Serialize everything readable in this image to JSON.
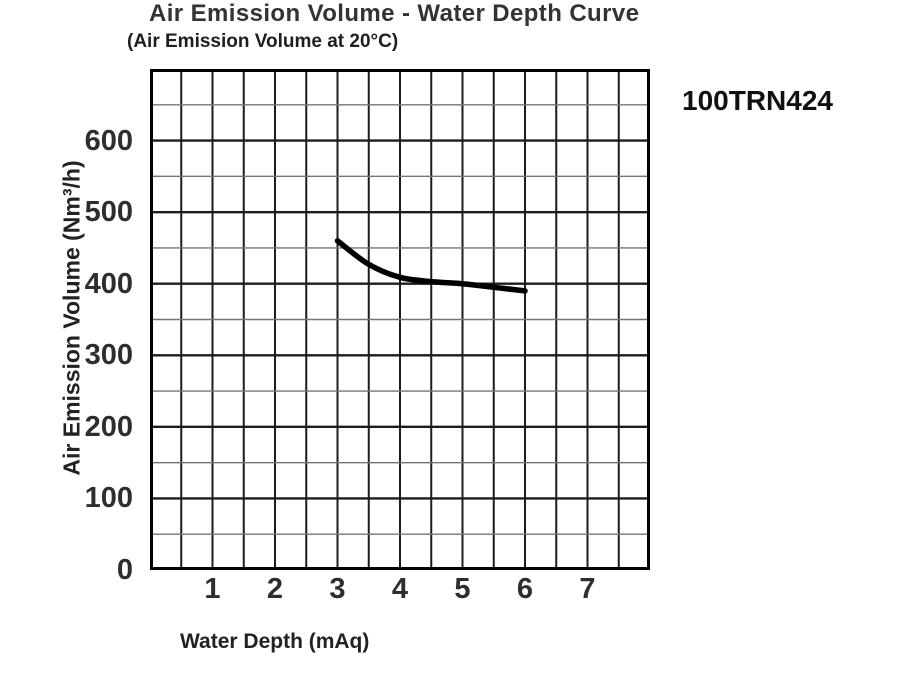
{
  "header": {
    "title": "Air Emission Volume - Water Depth Curve",
    "subtitle": "(Air Emission Volume at 20°C)",
    "model_label": "100TRN424"
  },
  "chart_data": {
    "type": "line",
    "title": "Air Emission Volume - Water Depth Curve",
    "subtitle": "Air Emission Volume at 20°C",
    "xlabel": "Water Depth (mAq)",
    "ylabel": "Air Emission Volume (Nm³/h)",
    "xlim": [
      0,
      8
    ],
    "ylim": [
      0,
      700
    ],
    "x_tick_labels": [
      1,
      2,
      3,
      4,
      5,
      6,
      7
    ],
    "y_tick_labels": [
      0,
      100,
      200,
      300,
      400,
      500,
      600
    ],
    "x_grid_step": 0.5,
    "y_grid_step": 50,
    "y_major_step": 100,
    "grid": true,
    "legend": "none",
    "series": [
      {
        "name": "100TRN424",
        "x": [
          3.0,
          3.5,
          4.0,
          4.5,
          5.0,
          5.5,
          6.0
        ],
        "y": [
          460,
          427,
          409,
          403,
          400,
          395,
          390
        ]
      }
    ],
    "colors": {
      "curve": "#000000",
      "grid_vertical": "#1c1c1c",
      "grid_major": "#1c1c1c",
      "grid_minor": "#757575",
      "border": "#000000",
      "text": "#2e2e2e"
    }
  }
}
